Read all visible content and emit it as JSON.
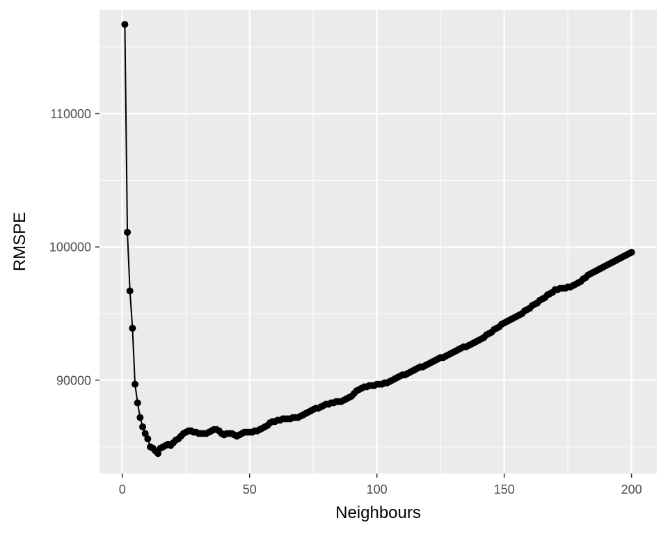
{
  "chart_data": {
    "type": "line",
    "title": "",
    "xlabel": "Neighbours",
    "ylabel": "RMSPE",
    "xlim": [
      -8.95,
      209.95
    ],
    "ylim": [
      83000,
      117800
    ],
    "x_ticks": [
      0,
      50,
      100,
      150,
      200
    ],
    "x_tick_labels": [
      "0",
      "50",
      "100",
      "150",
      "200"
    ],
    "y_ticks": [
      90000,
      100000,
      110000
    ],
    "y_tick_labels": [
      "90000",
      "100000",
      "110000"
    ],
    "grid": true,
    "legend": "none",
    "colors": {
      "panel_bg": "#ebebeb",
      "grid_major": "#ffffff",
      "line": "#000000",
      "point": "#000000",
      "tick_text": "#4d4d4d",
      "title_text": "#000000"
    },
    "series": [
      {
        "x": [
          1,
          2,
          3,
          4,
          5,
          6,
          7,
          8,
          9,
          10,
          11,
          12,
          13,
          14,
          15,
          16,
          17,
          18,
          19,
          20,
          21,
          22,
          23,
          24,
          25,
          26,
          27,
          28,
          29,
          30,
          31,
          32,
          33,
          34,
          35,
          36,
          37,
          38,
          39,
          40,
          41,
          42,
          43,
          44,
          45,
          46,
          47,
          48,
          49,
          50,
          51,
          52,
          53,
          54,
          55,
          56,
          57,
          58,
          59,
          60,
          61,
          62,
          63,
          64,
          65,
          66,
          67,
          68,
          69,
          70,
          71,
          72,
          73,
          74,
          75,
          76,
          77,
          78,
          79,
          80,
          81,
          82,
          83,
          84,
          85,
          86,
          87,
          88,
          89,
          90,
          91,
          92,
          93,
          94,
          95,
          96,
          97,
          98,
          99,
          100,
          101,
          102,
          103,
          104,
          105,
          106,
          107,
          108,
          109,
          110,
          111,
          112,
          113,
          114,
          115,
          116,
          117,
          118,
          119,
          120,
          121,
          122,
          123,
          124,
          125,
          126,
          127,
          128,
          129,
          130,
          131,
          132,
          133,
          134,
          135,
          136,
          137,
          138,
          139,
          140,
          141,
          142,
          143,
          144,
          145,
          146,
          147,
          148,
          149,
          150,
          151,
          152,
          153,
          154,
          155,
          156,
          157,
          158,
          159,
          160,
          161,
          162,
          163,
          164,
          165,
          166,
          167,
          168,
          169,
          170,
          171,
          172,
          173,
          174,
          175,
          176,
          177,
          178,
          179,
          180,
          181,
          182,
          183,
          184,
          185,
          186,
          187,
          188,
          189,
          190,
          191,
          192,
          193,
          194,
          195,
          196,
          197,
          198,
          199,
          200
        ],
        "y": [
          116700,
          101100,
          96700,
          93900,
          89700,
          88300,
          87200,
          86500,
          86000,
          85600,
          85000,
          84900,
          84700,
          84500,
          84900,
          85000,
          85100,
          85200,
          85100,
          85300,
          85500,
          85600,
          85800,
          86000,
          86100,
          86200,
          86200,
          86100,
          86100,
          86000,
          86000,
          86000,
          86000,
          86100,
          86200,
          86300,
          86300,
          86200,
          86000,
          85900,
          86000,
          86000,
          86000,
          85900,
          85800,
          85900,
          86000,
          86100,
          86100,
          86100,
          86100,
          86200,
          86200,
          86300,
          86400,
          86500,
          86600,
          86800,
          86900,
          86900,
          87000,
          87000,
          87100,
          87100,
          87100,
          87100,
          87200,
          87200,
          87200,
          87300,
          87400,
          87500,
          87600,
          87700,
          87800,
          87900,
          87900,
          88000,
          88100,
          88200,
          88200,
          88300,
          88300,
          88400,
          88400,
          88400,
          88500,
          88600,
          88700,
          88800,
          89000,
          89200,
          89300,
          89400,
          89500,
          89500,
          89600,
          89600,
          89600,
          89700,
          89700,
          89700,
          89800,
          89800,
          89900,
          90000,
          90100,
          90200,
          90300,
          90400,
          90400,
          90500,
          90600,
          90700,
          90800,
          90900,
          91000,
          91000,
          91100,
          91200,
          91300,
          91400,
          91500,
          91600,
          91700,
          91700,
          91800,
          91900,
          92000,
          92100,
          92200,
          92300,
          92400,
          92500,
          92500,
          92600,
          92700,
          92800,
          92900,
          93000,
          93100,
          93200,
          93400,
          93500,
          93600,
          93800,
          93900,
          94000,
          94200,
          94300,
          94400,
          94500,
          94600,
          94700,
          94800,
          94900,
          95000,
          95200,
          95300,
          95400,
          95600,
          95700,
          95800,
          96000,
          96100,
          96200,
          96400,
          96500,
          96600,
          96800,
          96800,
          96900,
          96900,
          96900,
          97000,
          97000,
          97100,
          97200,
          97300,
          97400,
          97600,
          97700,
          97900,
          98000,
          98100,
          98200,
          98300,
          98400,
          98500,
          98600,
          98700,
          98800,
          98900,
          99000,
          99100,
          99200,
          99300,
          99400,
          99500,
          99600
        ]
      }
    ]
  }
}
